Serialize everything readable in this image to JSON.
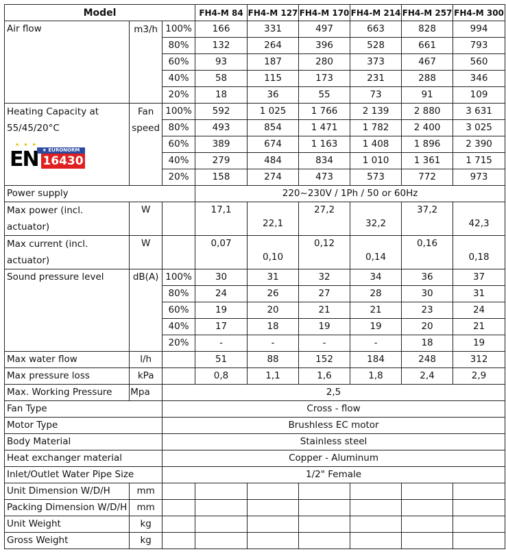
{
  "header": {
    "model": "Model",
    "models": [
      "FH4-M 84",
      "FH4-M 127",
      "FH4-M 170",
      "FH4-M 214",
      "FH4-M 257",
      "FH4-M 300"
    ]
  },
  "air_flow": {
    "label": "Air flow",
    "unit": "m3/h",
    "rows": [
      {
        "pct": "100%",
        "values": [
          "166",
          "331",
          "497",
          "663",
          "828",
          "994"
        ]
      },
      {
        "pct": "80%",
        "values": [
          "132",
          "264",
          "396",
          "528",
          "661",
          "793"
        ]
      },
      {
        "pct": "60%",
        "values": [
          "93",
          "187",
          "280",
          "373",
          "467",
          "560"
        ]
      },
      {
        "pct": "40%",
        "values": [
          "58",
          "115",
          "173",
          "231",
          "288",
          "346"
        ]
      },
      {
        "pct": "20%",
        "values": [
          "18",
          "36",
          "55",
          "73",
          "91",
          "109"
        ]
      }
    ]
  },
  "heating": {
    "label": "Heating Capacity at 55/45/20°C",
    "unit": "Fan speed",
    "logo": {
      "letters": "EN",
      "top": "EURONORM",
      "number": "16430",
      "colors": {
        "blue": "#2a4aa0",
        "red": "#e02020",
        "star": "#e5c100"
      }
    },
    "rows": [
      {
        "pct": "100%",
        "values": [
          "592",
          "1 025",
          "1 766",
          "2 139",
          "2 880",
          "3 631"
        ]
      },
      {
        "pct": "80%",
        "values": [
          "493",
          "854",
          "1 471",
          "1 782",
          "2 400",
          "3 025"
        ]
      },
      {
        "pct": "60%",
        "values": [
          "389",
          "674",
          "1 163",
          "1 408",
          "1 896",
          "2 390"
        ]
      },
      {
        "pct": "40%",
        "values": [
          "279",
          "484",
          "834",
          "1 010",
          "1 361",
          "1 715"
        ]
      },
      {
        "pct": "20%",
        "values": [
          "158",
          "274",
          "473",
          "573",
          "772",
          "973"
        ]
      }
    ]
  },
  "power_supply": {
    "label": "Power supply",
    "value": "220~230V / 1Ph / 50 or 60Hz"
  },
  "max_power": {
    "label": "Max power (incl. actuator)",
    "unit": "W",
    "values": [
      "17,1",
      "22,1",
      "27,2",
      "32,2",
      "37,2",
      "42,3"
    ]
  },
  "max_current": {
    "label": "Max current (incl. actuator)",
    "unit": "W",
    "values": [
      "0,07",
      "0,10",
      "0,12",
      "0,14",
      "0,16",
      "0,18"
    ]
  },
  "sound": {
    "label": "Sound pressure level",
    "unit": "dB(A)",
    "rows": [
      {
        "pct": "100%",
        "values": [
          "30",
          "31",
          "32",
          "34",
          "36",
          "37"
        ]
      },
      {
        "pct": "80%",
        "values": [
          "24",
          "26",
          "27",
          "28",
          "30",
          "31"
        ]
      },
      {
        "pct": "60%",
        "values": [
          "19",
          "20",
          "21",
          "21",
          "23",
          "24"
        ]
      },
      {
        "pct": "40%",
        "values": [
          "17",
          "18",
          "19",
          "19",
          "20",
          "21"
        ]
      },
      {
        "pct": "20%",
        "values": [
          "-",
          "-",
          "-",
          "-",
          "18",
          "19"
        ]
      }
    ]
  },
  "max_water_flow": {
    "label": "Max water flow",
    "unit": "l/h",
    "values": [
      "51",
      "88",
      "152",
      "184",
      "248",
      "312"
    ]
  },
  "max_pressure_loss": {
    "label": "Max pressure loss",
    "unit": "kPa",
    "values": [
      "0,8",
      "1,1",
      "1,6",
      "1,8",
      "2,4",
      "2,9"
    ]
  },
  "max_working_pressure": {
    "label": "Max. Working Pressure",
    "unit": "Mpa",
    "value": "2,5"
  },
  "spans": [
    {
      "label": "Fan Type",
      "value": "Cross - flow"
    },
    {
      "label": "Motor Type",
      "value": "Brushless EC motor"
    },
    {
      "label": "Body Material",
      "value": "Stainless steel"
    },
    {
      "label": "Heat exchanger material",
      "value": "Copper - Aluminum"
    },
    {
      "label": "Inlet/Outlet Water Pipe Size",
      "value": "1/2\" Female"
    }
  ],
  "empty_rows": [
    {
      "label": "Unit Dimension W/D/H",
      "unit": "mm"
    },
    {
      "label": "Packing Dimension W/D/H",
      "unit": "mm"
    },
    {
      "label": "Unit Weight",
      "unit": "kg"
    },
    {
      "label": "Gross Weight",
      "unit": "kg"
    }
  ]
}
